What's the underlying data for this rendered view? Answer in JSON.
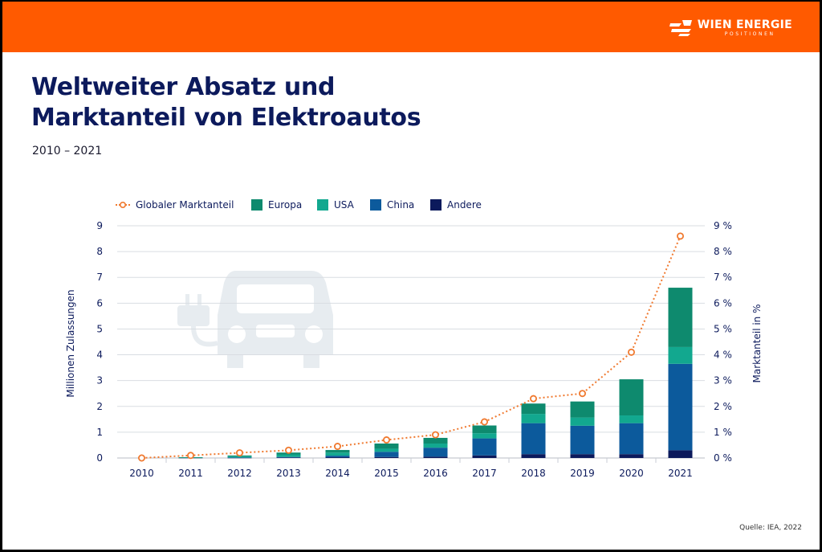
{
  "brand": {
    "name": "WIEN ENERGIE",
    "sub": "POSITIONEN"
  },
  "header": {
    "title_line1": "Weltweiter Absatz und",
    "title_line2": "Marktanteil von Elektroautos",
    "subtitle": "2010 – 2021"
  },
  "source": "Quelle: IEA, 2022",
  "colors": {
    "brand_orange": "#ff5a00",
    "title_navy": "#0c1a5c",
    "europa": "#0e8a6e",
    "usa": "#12a88f",
    "china": "#0c5a9c",
    "andere": "#0c1a5c",
    "marktanteil": "#f07a30"
  },
  "chart_data": {
    "type": "bar",
    "stacked": true,
    "categories": [
      "2010",
      "2011",
      "2012",
      "2013",
      "2014",
      "2015",
      "2016",
      "2017",
      "2018",
      "2019",
      "2020",
      "2021"
    ],
    "series": [
      {
        "name": "Andere",
        "color": "#0c1a5c",
        "values": [
          0.0,
          0.01,
          0.01,
          0.02,
          0.03,
          0.04,
          0.05,
          0.1,
          0.15,
          0.15,
          0.15,
          0.3
        ]
      },
      {
        "name": "China",
        "color": "#0c5a9c",
        "values": [
          0.0,
          0.0,
          0.01,
          0.02,
          0.06,
          0.2,
          0.35,
          0.66,
          1.2,
          1.1,
          1.2,
          3.35
        ]
      },
      {
        "name": "USA",
        "color": "#12a88f",
        "values": [
          0.0,
          0.01,
          0.05,
          0.1,
          0.12,
          0.12,
          0.16,
          0.2,
          0.36,
          0.32,
          0.3,
          0.65
        ]
      },
      {
        "name": "Europa",
        "color": "#0e8a6e",
        "values": [
          0.0,
          0.01,
          0.03,
          0.07,
          0.1,
          0.2,
          0.22,
          0.3,
          0.4,
          0.62,
          1.4,
          2.3
        ]
      }
    ],
    "line_series": {
      "name": "Globaler Marktanteil",
      "color": "#f07a30",
      "axis": "right",
      "values": [
        0.0,
        0.1,
        0.2,
        0.3,
        0.45,
        0.7,
        0.9,
        1.4,
        2.3,
        2.5,
        4.1,
        8.6
      ]
    },
    "legend": [
      "Globaler Marktanteil",
      "Europa",
      "USA",
      "China",
      "Andere"
    ],
    "legend_position": "top-left",
    "ylabel_left": "Millionen Zulassungen",
    "ylabel_right": "Marktanteil in %",
    "ylim_left": [
      0,
      9
    ],
    "ylim_right": [
      0,
      9
    ],
    "yticks_left": [
      "0",
      "1",
      "2",
      "3",
      "4",
      "5",
      "6",
      "7",
      "8",
      "9"
    ],
    "yticks_right": [
      "0 %",
      "1 %",
      "2 %",
      "3 %",
      "4 %",
      "5 %",
      "6 %",
      "7 %",
      "8 %",
      "9 %"
    ],
    "grid": true
  }
}
